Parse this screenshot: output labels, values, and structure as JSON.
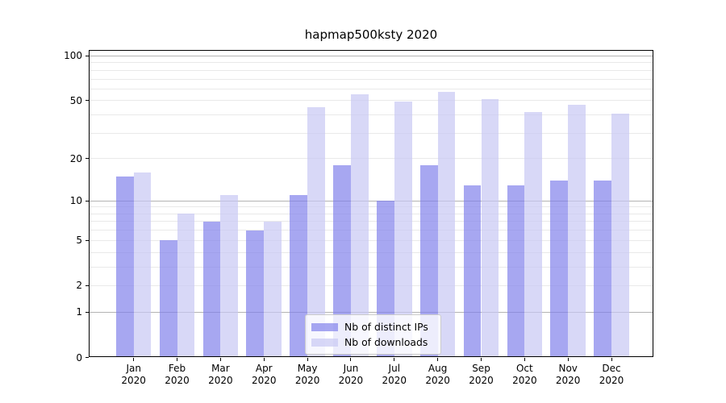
{
  "title": "hapmap500ksty 2020",
  "chart_data": {
    "type": "bar",
    "title": "hapmap500ksty 2020",
    "categories": [
      "Jan 2020",
      "Feb 2020",
      "Mar 2020",
      "Apr 2020",
      "May 2020",
      "Jun 2020",
      "Jul 2020",
      "Aug 2020",
      "Sep 2020",
      "Oct 2020",
      "Nov 2020",
      "Dec 2020"
    ],
    "series": [
      {
        "name": "Nb of distinct IPs",
        "key": "distinct-ips",
        "color": "#8282eb",
        "alpha": 0.7,
        "apparent_color": "#a7a7f0",
        "values": [
          15,
          5,
          7,
          6,
          11,
          18,
          10,
          18,
          13,
          13,
          14,
          14
        ]
      },
      {
        "name": "Nb of downloads",
        "key": "downloads",
        "color": "#c8c8f4",
        "alpha": 0.7,
        "apparent_color": "#d8d8f7",
        "values": [
          16,
          8,
          11,
          7,
          45,
          55,
          49,
          57,
          51,
          42,
          47,
          41
        ]
      }
    ],
    "xlabel": "",
    "ylabel": "",
    "y_scale": "log10(1+v)",
    "ylim": [
      0,
      110
    ],
    "y_tick_labels": [
      0,
      1,
      2,
      5,
      10,
      20,
      50,
      100
    ],
    "y_major_gridlines": [
      1,
      10,
      100
    ],
    "y_minor_gridlines": [
      2,
      3,
      4,
      5,
      6,
      7,
      8,
      9,
      20,
      30,
      40,
      50,
      60,
      70,
      80,
      90
    ],
    "grid": true,
    "legend_position": "lower center",
    "colors": {
      "major_grid": "#b3b3b3",
      "minor_grid": "#e9e9e9",
      "spine": "#000000",
      "background": "#ffffff"
    }
  }
}
